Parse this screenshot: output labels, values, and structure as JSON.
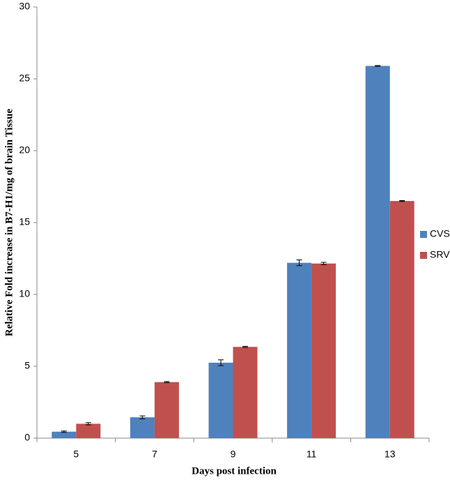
{
  "chart_data": {
    "type": "bar",
    "x_label": "Days post infection",
    "y_label": "Relative Fold increase in B7-H1/mg of  brain Tissue",
    "categories": [
      "5",
      "7",
      "9",
      "11",
      "13"
    ],
    "series": [
      {
        "name": "CVS",
        "color": "#4f81bd",
        "values": [
          0.45,
          1.45,
          5.25,
          12.2,
          25.9
        ],
        "errors": [
          0.05,
          0.1,
          0.2,
          0.2,
          0.03
        ]
      },
      {
        "name": "SRV",
        "color": "#c0504d",
        "values": [
          1.0,
          3.9,
          6.35,
          12.15,
          16.5
        ],
        "errors": [
          0.08,
          0.04,
          0.04,
          0.08,
          0.03
        ]
      }
    ],
    "ylim": [
      0,
      30
    ],
    "yticks": [
      0,
      5,
      10,
      15,
      20,
      25,
      30
    ],
    "grid": false,
    "legend": "right"
  }
}
